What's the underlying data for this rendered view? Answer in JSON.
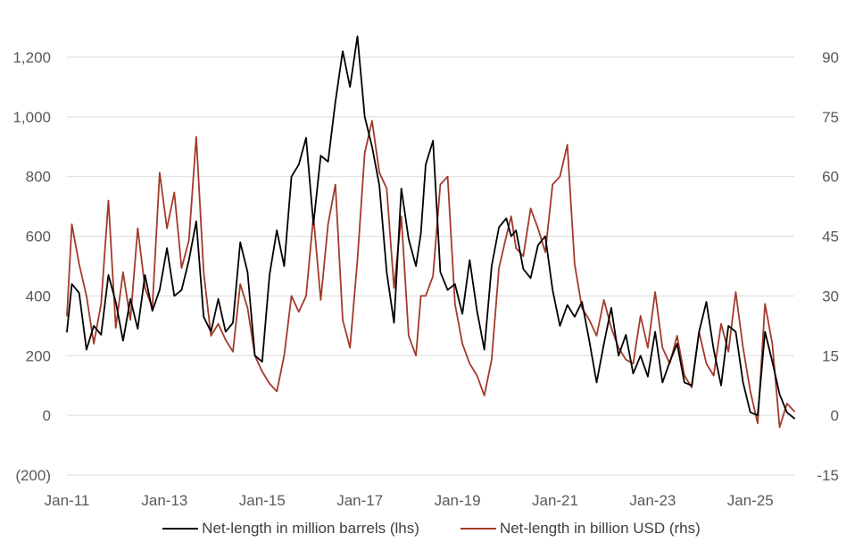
{
  "chart_data": {
    "type": "line",
    "title": "",
    "x_ticks": [
      "Jan-11",
      "Jan-13",
      "Jan-15",
      "Jan-17",
      "Jan-19",
      "Jan-21",
      "Jan-23",
      "Jan-25"
    ],
    "x_range": [
      2011.0,
      2025.9
    ],
    "y_left": {
      "label": "Net-length in million barrels",
      "range": [
        -200,
        1300
      ],
      "ticks": [
        -200,
        0,
        200,
        400,
        600,
        800,
        1000,
        1200
      ],
      "tick_labels": [
        "(200)",
        "0",
        "200",
        "400",
        "600",
        "800",
        "1,000",
        "1,200"
      ]
    },
    "y_right": {
      "label": "Net-length in billion USD",
      "range": [
        -15,
        97.5
      ],
      "ticks": [
        -15,
        0,
        15,
        30,
        45,
        60,
        75,
        90
      ],
      "tick_labels": [
        "-15",
        "0",
        "15",
        "30",
        "45",
        "60",
        "75",
        "90"
      ]
    },
    "grid": true,
    "legend_position": "bottom",
    "series": [
      {
        "name": "Net-length in million barrels (lhs)",
        "axis": "left",
        "color": "#000000",
        "x": [
          2011.0,
          2011.1,
          2011.25,
          2011.4,
          2011.55,
          2011.7,
          2011.85,
          2012.0,
          2012.15,
          2012.3,
          2012.45,
          2012.6,
          2012.75,
          2012.9,
          2013.05,
          2013.2,
          2013.35,
          2013.5,
          2013.65,
          2013.8,
          2013.95,
          2014.1,
          2014.25,
          2014.4,
          2014.55,
          2014.7,
          2014.85,
          2015.0,
          2015.15,
          2015.3,
          2015.45,
          2015.6,
          2015.75,
          2015.9,
          2016.05,
          2016.2,
          2016.35,
          2016.5,
          2016.65,
          2016.8,
          2016.95,
          2017.1,
          2017.25,
          2017.4,
          2017.55,
          2017.7,
          2017.85,
          2018.0,
          2018.15,
          2018.25,
          2018.35,
          2018.5,
          2018.65,
          2018.8,
          2018.95,
          2019.1,
          2019.25,
          2019.4,
          2019.55,
          2019.7,
          2019.85,
          2020.0,
          2020.1,
          2020.2,
          2020.35,
          2020.5,
          2020.65,
          2020.8,
          2020.95,
          2021.1,
          2021.25,
          2021.4,
          2021.55,
          2021.7,
          2021.85,
          2022.0,
          2022.15,
          2022.3,
          2022.45,
          2022.6,
          2022.75,
          2022.9,
          2023.05,
          2023.2,
          2023.35,
          2023.5,
          2023.65,
          2023.8,
          2023.95,
          2024.1,
          2024.25,
          2024.4,
          2024.55,
          2024.7,
          2024.85,
          2025.0,
          2025.15,
          2025.3,
          2025.45,
          2025.6,
          2025.75,
          2025.9
        ],
        "values": [
          280,
          440,
          410,
          220,
          300,
          270,
          470,
          380,
          250,
          390,
          290,
          470,
          350,
          420,
          560,
          400,
          420,
          520,
          650,
          330,
          280,
          390,
          280,
          310,
          580,
          480,
          200,
          180,
          470,
          620,
          500,
          800,
          840,
          930,
          640,
          870,
          850,
          1050,
          1220,
          1100,
          1270,
          1000,
          900,
          770,
          480,
          310,
          760,
          590,
          500,
          610,
          840,
          920,
          480,
          420,
          440,
          340,
          520,
          350,
          220,
          500,
          630,
          660,
          600,
          620,
          490,
          460,
          570,
          600,
          420,
          300,
          370,
          330,
          380,
          250,
          110,
          240,
          360,
          200,
          270,
          140,
          200,
          130,
          280,
          110,
          180,
          240,
          110,
          100,
          280,
          380,
          220,
          100,
          300,
          280,
          110,
          10,
          0,
          280,
          180,
          70,
          10,
          -10
        ]
      },
      {
        "name": "Net-length in billion USD (rhs)",
        "axis": "right",
        "color": "#a33a2a",
        "x": [
          2011.0,
          2011.1,
          2011.25,
          2011.4,
          2011.55,
          2011.7,
          2011.85,
          2012.0,
          2012.15,
          2012.3,
          2012.45,
          2012.6,
          2012.75,
          2012.9,
          2013.05,
          2013.2,
          2013.35,
          2013.5,
          2013.65,
          2013.8,
          2013.95,
          2014.1,
          2014.25,
          2014.4,
          2014.55,
          2014.7,
          2014.85,
          2015.0,
          2015.15,
          2015.3,
          2015.45,
          2015.6,
          2015.75,
          2015.9,
          2016.05,
          2016.2,
          2016.35,
          2016.5,
          2016.65,
          2016.8,
          2016.95,
          2017.1,
          2017.25,
          2017.4,
          2017.55,
          2017.7,
          2017.85,
          2018.0,
          2018.15,
          2018.25,
          2018.35,
          2018.5,
          2018.65,
          2018.8,
          2018.95,
          2019.1,
          2019.25,
          2019.4,
          2019.55,
          2019.7,
          2019.85,
          2020.0,
          2020.1,
          2020.2,
          2020.35,
          2020.5,
          2020.65,
          2020.8,
          2020.95,
          2021.1,
          2021.25,
          2021.4,
          2021.55,
          2021.7,
          2021.85,
          2022.0,
          2022.15,
          2022.3,
          2022.45,
          2022.6,
          2022.75,
          2022.9,
          2023.05,
          2023.2,
          2023.35,
          2023.5,
          2023.65,
          2023.8,
          2023.95,
          2024.1,
          2024.25,
          2024.4,
          2024.55,
          2024.7,
          2024.85,
          2025.0,
          2025.15,
          2025.3,
          2025.45,
          2025.6,
          2025.75,
          2025.9
        ],
        "values": [
          25,
          48,
          38,
          30,
          18,
          28,
          54,
          22,
          36,
          24,
          47,
          32,
          27,
          61,
          47,
          56,
          37,
          44,
          70,
          36,
          20,
          23,
          19,
          16,
          33,
          27,
          15,
          11,
          8,
          6,
          15,
          30,
          26,
          30,
          50,
          29,
          48,
          58,
          24,
          17,
          39,
          66,
          74,
          61,
          57,
          32,
          50,
          20,
          15,
          30,
          30,
          35,
          58,
          60,
          28,
          18,
          13,
          10,
          5,
          14,
          37,
          45,
          50,
          42,
          40,
          52,
          47,
          41,
          58,
          60,
          68,
          38,
          27,
          24,
          20,
          29,
          22,
          17,
          14,
          13,
          25,
          17,
          31,
          17,
          13,
          20,
          10,
          7,
          21,
          13,
          10,
          23,
          16,
          31,
          17,
          6,
          -2,
          28,
          18,
          -3,
          3,
          1
        ]
      }
    ]
  }
}
